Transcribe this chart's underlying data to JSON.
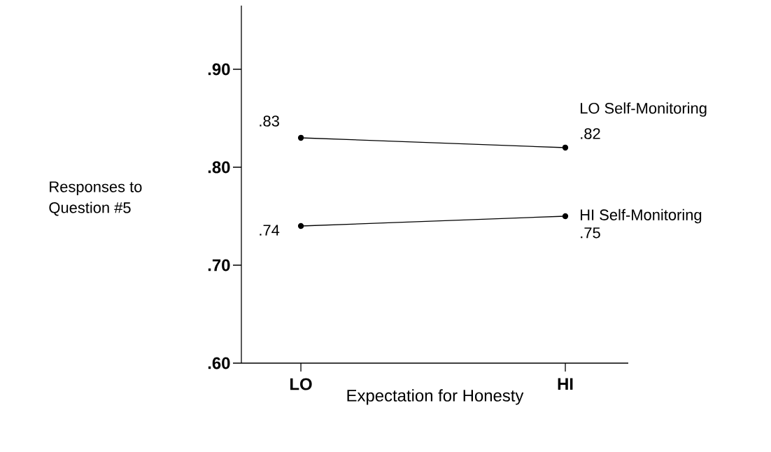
{
  "chart_data": {
    "type": "line",
    "xlabel": "Expectation for Honesty",
    "ylabel": "Responses to Question #5",
    "categories": [
      "LO",
      "HI"
    ],
    "series": [
      {
        "name": "LO Self-Monitoring",
        "color": "#000000",
        "values": [
          0.83,
          0.82
        ],
        "value_labels": [
          ".83",
          ".82"
        ]
      },
      {
        "name": "HI Self-Monitoring",
        "color": "#000000",
        "values": [
          0.74,
          0.75
        ],
        "value_labels": [
          ".74",
          ".75"
        ]
      }
    ],
    "ylim": [
      0.6,
      0.965
    ],
    "yticks": [
      {
        "value": 0.6,
        "label": ".60"
      },
      {
        "value": 0.7,
        "label": ".70"
      },
      {
        "value": 0.8,
        "label": ".80"
      },
      {
        "value": 0.9,
        "label": ".90"
      }
    ],
    "marker": "circle",
    "line_style": "solid",
    "grid": false
  }
}
